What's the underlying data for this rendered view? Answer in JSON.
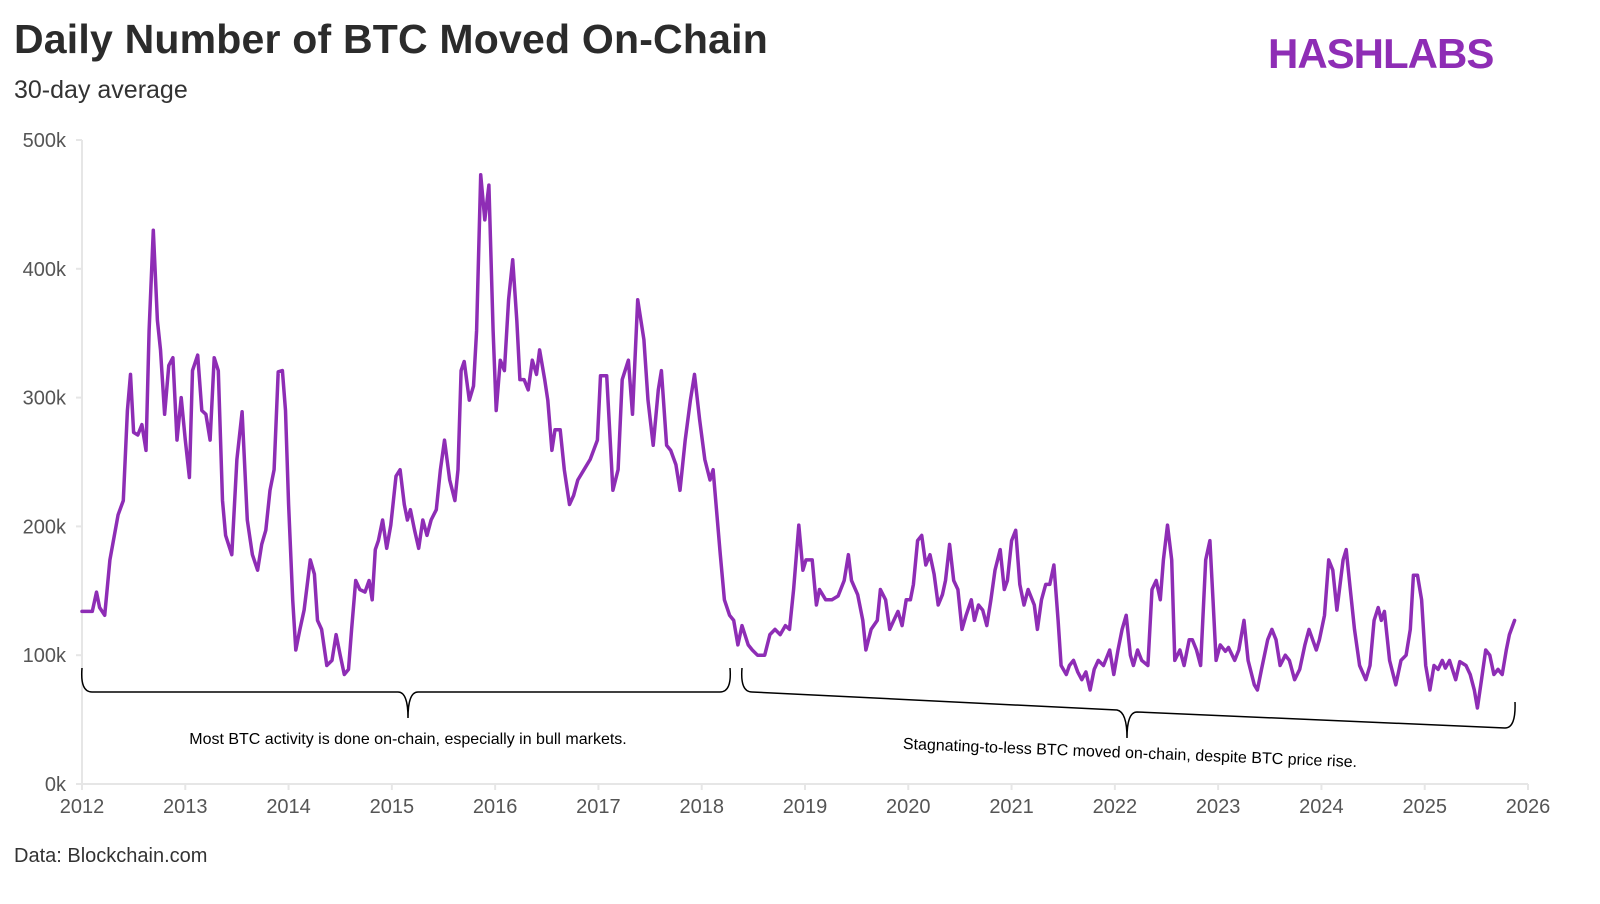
{
  "header": {
    "title": "Daily Number of BTC Moved On-Chain",
    "subtitle": "30-day average",
    "logo": "HASHLABS"
  },
  "footer": {
    "source": "Data: Blockchain.com"
  },
  "colors": {
    "line": "#8e2db5",
    "logo": "#8e2db5",
    "axis": "#e6e6e6"
  },
  "chart_data": {
    "type": "line",
    "title": "Daily Number of BTC Moved On-Chain",
    "subtitle": "30-day average",
    "xlim": [
      2012,
      2026
    ],
    "ylim": [
      0,
      500000
    ],
    "grid": false,
    "x_ticks": [
      "2012",
      "2013",
      "2014",
      "2015",
      "2016",
      "2017",
      "2018",
      "2019",
      "2020",
      "2021",
      "2022",
      "2023",
      "2024",
      "2025",
      "2026"
    ],
    "y_ticks": [
      "0k",
      "100k",
      "200k",
      "300k",
      "400k",
      "500k"
    ],
    "annotations": [
      {
        "text": "Most BTC activity is done on-chain, especially in bull markets.",
        "from": 2012.0,
        "to": 2018.27
      },
      {
        "text": "Stagnating-to-less BTC moved on-chain, despite BTC price rise.",
        "from": 2018.39,
        "to": 2025.87
      }
    ],
    "series": [
      {
        "x": [
          2012.0,
          2012.1,
          2012.14,
          2012.17,
          2012.22,
          2012.27,
          2012.35,
          2012.4,
          2012.44,
          2012.47,
          2012.5,
          2012.54,
          2012.58,
          2012.62,
          2012.65,
          2012.69,
          2012.73,
          2012.76,
          2012.8,
          2012.84,
          2012.88,
          2012.92,
          2012.96,
          2013.0,
          2013.04,
          2013.07,
          2013.12,
          2013.16,
          2013.2,
          2013.24,
          2013.28,
          2013.32,
          2013.36,
          2013.39,
          2013.45,
          2013.5,
          2013.55,
          2013.6,
          2013.65,
          2013.7,
          2013.74,
          2013.78,
          2013.82,
          2013.86,
          2013.9,
          2013.94,
          2013.97,
          2014.0,
          2014.04,
          2014.07,
          2014.11,
          2014.15,
          2014.21,
          2014.25,
          2014.28,
          2014.32,
          2014.37,
          2014.42,
          2014.46,
          2014.5,
          2014.54,
          2014.58,
          2014.61,
          2014.65,
          2014.69,
          2014.74,
          2014.78,
          2014.81,
          2014.84,
          2014.87,
          2014.91,
          2014.95,
          2014.99,
          2015.04,
          2015.08,
          2015.12,
          2015.15,
          2015.18,
          2015.22,
          2015.26,
          2015.3,
          2015.34,
          2015.38,
          2015.43,
          2015.47,
          2015.51,
          2015.56,
          2015.61,
          2015.64,
          2015.67,
          2015.7,
          2015.75,
          2015.79,
          2015.82,
          2015.86,
          2015.9,
          2015.94,
          2015.98,
          2016.01,
          2016.05,
          2016.09,
          2016.13,
          2016.17,
          2016.21,
          2016.24,
          2016.28,
          2016.32,
          2016.36,
          2016.4,
          2016.43,
          2016.48,
          2016.51,
          2016.55,
          2016.58,
          2016.63,
          2016.67,
          2016.72,
          2016.76,
          2016.8,
          2016.86,
          2016.92,
          2016.99,
          2017.02,
          2017.08,
          2017.14,
          2017.19,
          2017.23,
          2017.29,
          2017.33,
          2017.38,
          2017.44,
          2017.48,
          2017.53,
          2017.58,
          2017.61,
          2017.66,
          2017.7,
          2017.75,
          2017.79,
          2017.84,
          2017.89,
          2017.93,
          2017.98,
          2018.03,
          2018.08,
          2018.11,
          2018.18,
          2018.22,
          2018.27,
          2018.31,
          2018.35,
          2018.39,
          2018.45,
          2018.49,
          2018.54,
          2018.61,
          2018.66,
          2018.71,
          2018.76,
          2018.81,
          2018.85,
          2018.89,
          2018.94,
          2018.98,
          2019.01,
          2019.07,
          2019.11,
          2019.14,
          2019.2,
          2019.26,
          2019.32,
          2019.38,
          2019.42,
          2019.45,
          2019.51,
          2019.56,
          2019.59,
          2019.64,
          2019.7,
          2019.73,
          2019.78,
          2019.82,
          2019.86,
          2019.9,
          2019.94,
          2019.98,
          2020.02,
          2020.05,
          2020.09,
          2020.13,
          2020.17,
          2020.21,
          2020.25,
          2020.29,
          2020.33,
          2020.36,
          2020.4,
          2020.44,
          2020.48,
          2020.52,
          2020.56,
          2020.61,
          2020.64,
          2020.68,
          2020.72,
          2020.76,
          2020.8,
          2020.84,
          2020.89,
          2020.93,
          2020.96,
          2021.0,
          2021.04,
          2021.08,
          2021.12,
          2021.16,
          2021.22,
          2021.25,
          2021.29,
          2021.33,
          2021.37,
          2021.41,
          2021.45,
          2021.48,
          2021.53,
          2021.56,
          2021.6,
          2021.64,
          2021.68,
          2021.72,
          2021.76,
          2021.8,
          2021.84,
          2021.89,
          2021.95,
          2021.99,
          2022.03,
          2022.07,
          2022.11,
          2022.15,
          2022.18,
          2022.22,
          2022.26,
          2022.32,
          2022.36,
          2022.4,
          2022.44,
          2022.47,
          2022.51,
          2022.55,
          2022.58,
          2022.63,
          2022.67,
          2022.72,
          2022.75,
          2022.79,
          2022.83,
          2022.88,
          2022.92,
          2022.95,
          2022.98,
          2023.02,
          2023.07,
          2023.1,
          2023.16,
          2023.2,
          2023.25,
          2023.29,
          2023.35,
          2023.38,
          2023.42,
          2023.48,
          2023.52,
          2023.56,
          2023.6,
          2023.65,
          2023.69,
          2023.74,
          2023.79,
          2023.84,
          2023.88,
          2023.95,
          2023.98,
          2024.03,
          2024.07,
          2024.11,
          2024.15,
          2024.21,
          2024.24,
          2024.28,
          2024.32,
          2024.37,
          2024.43,
          2024.47,
          2024.51,
          2024.55,
          2024.58,
          2024.61,
          2024.66,
          2024.72,
          2024.77,
          2024.82,
          2024.86,
          2024.89,
          2024.93,
          2024.97,
          2025.01,
          2025.05,
          2025.09,
          2025.13,
          2025.17,
          2025.2,
          2025.24,
          2025.3,
          2025.34,
          2025.4,
          2025.44,
          2025.48,
          2025.51,
          2025.55,
          2025.59,
          2025.63,
          2025.67,
          2025.71,
          2025.75,
          2025.79,
          2025.82,
          2025.87
        ],
        "y": [
          134000,
          134000,
          149000,
          137000,
          131000,
          174000,
          209000,
          220000,
          290000,
          318000,
          273000,
          271000,
          279000,
          259000,
          352000,
          430000,
          360000,
          337000,
          287000,
          325000,
          331000,
          267000,
          300000,
          267000,
          238000,
          321000,
          333000,
          290000,
          287000,
          267000,
          331000,
          321000,
          220000,
          193000,
          178000,
          252000,
          289000,
          205000,
          178000,
          166000,
          186000,
          197000,
          228000,
          244000,
          320000,
          321000,
          290000,
          217000,
          143000,
          104000,
          120000,
          135000,
          174000,
          163000,
          127000,
          120000,
          92000,
          96000,
          116000,
          100000,
          85000,
          89000,
          120000,
          158000,
          151000,
          149000,
          158000,
          143000,
          182000,
          189000,
          205000,
          183000,
          201000,
          239000,
          244000,
          217000,
          205000,
          213000,
          197000,
          183000,
          205000,
          193000,
          205000,
          213000,
          244000,
          267000,
          236000,
          220000,
          244000,
          321000,
          328000,
          298000,
          309000,
          352000,
          473000,
          438000,
          465000,
          352000,
          290000,
          329000,
          321000,
          376000,
          407000,
          360000,
          314000,
          314000,
          306000,
          329000,
          318000,
          337000,
          314000,
          298000,
          259000,
          275000,
          275000,
          244000,
          217000,
          224000,
          236000,
          244000,
          252000,
          267000,
          317000,
          317000,
          228000,
          244000,
          314000,
          329000,
          287000,
          376000,
          345000,
          298000,
          263000,
          306000,
          321000,
          263000,
          259000,
          248000,
          228000,
          267000,
          298000,
          318000,
          283000,
          252000,
          236000,
          244000,
          178000,
          143000,
          131000,
          127000,
          108000,
          123000,
          108000,
          104000,
          100000,
          100000,
          116000,
          120000,
          116000,
          123000,
          120000,
          151000,
          201000,
          166000,
          174000,
          174000,
          139000,
          151000,
          143000,
          143000,
          146000,
          158000,
          178000,
          158000,
          147000,
          127000,
          104000,
          120000,
          127000,
          151000,
          143000,
          120000,
          127000,
          134000,
          123000,
          143000,
          143000,
          155000,
          189000,
          193000,
          170000,
          178000,
          163000,
          139000,
          147000,
          158000,
          186000,
          158000,
          151000,
          120000,
          131000,
          143000,
          127000,
          139000,
          135000,
          123000,
          143000,
          166000,
          182000,
          151000,
          158000,
          189000,
          197000,
          155000,
          139000,
          151000,
          139000,
          120000,
          143000,
          155000,
          155000,
          170000,
          127000,
          92000,
          85000,
          92000,
          96000,
          87000,
          81000,
          87000,
          73000,
          89000,
          96000,
          92000,
          104000,
          85000,
          104000,
          120000,
          131000,
          100000,
          92000,
          104000,
          96000,
          92000,
          151000,
          158000,
          143000,
          174000,
          201000,
          174000,
          96000,
          104000,
          92000,
          112000,
          112000,
          104000,
          92000,
          174000,
          189000,
          143000,
          96000,
          108000,
          103000,
          106000,
          96000,
          104000,
          127000,
          96000,
          77000,
          73000,
          89000,
          112000,
          120000,
          112000,
          92000,
          100000,
          96000,
          81000,
          89000,
          108000,
          120000,
          104000,
          112000,
          131000,
          174000,
          166000,
          135000,
          174000,
          182000,
          151000,
          120000,
          92000,
          81000,
          92000,
          127000,
          137000,
          127000,
          134000,
          96000,
          77000,
          96000,
          100000,
          120000,
          162000,
          162000,
          143000,
          92000,
          73000,
          92000,
          89000,
          96000,
          90000,
          96000,
          81000,
          95000,
          92000,
          85000,
          73000,
          59000,
          81000,
          104000,
          100000,
          85000,
          89000,
          85000,
          104000,
          116000,
          127000
        ]
      }
    ]
  }
}
